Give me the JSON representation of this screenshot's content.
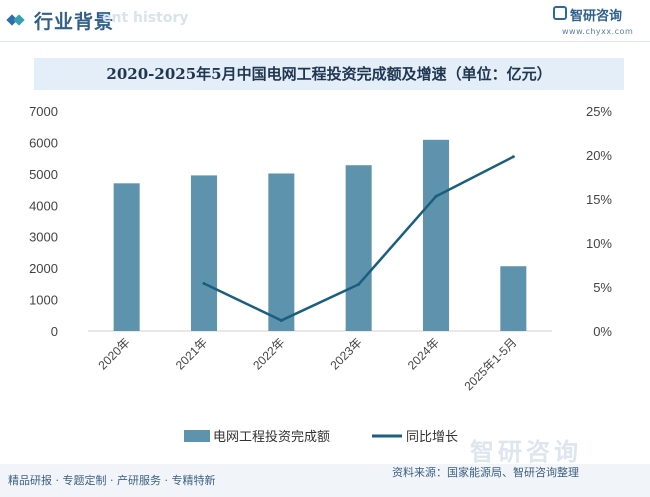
{
  "header": {
    "title": "行业背景",
    "ghost_text": "ent history",
    "logo_name": "智研咨询",
    "site": "www.chyxx.com"
  },
  "colors": {
    "bar": "#5e93ad",
    "line": "#1a5f7f",
    "accent_blue": "#2f6fa8",
    "accent_teal": "#35a0b4"
  },
  "chart_data": {
    "type": "bar",
    "title": "2020-2025年5月中国电网工程投资完成额及增速（单位：亿元）",
    "categories": [
      "2020年",
      "2021年",
      "2022年",
      "2023年",
      "2024年",
      "2025年1-5月"
    ],
    "series": [
      {
        "name": "电网工程投资完成额",
        "type": "bar",
        "axis": "left",
        "values": [
          4699,
          4951,
          5012,
          5275,
          6083,
          2061
        ]
      },
      {
        "name": "同比增长",
        "type": "line",
        "axis": "right",
        "unit": "%",
        "values": [
          null,
          5.4,
          1.2,
          5.3,
          15.3,
          19.8
        ]
      }
    ],
    "y_left": {
      "min": 0,
      "max": 7000,
      "ticks": [
        0,
        1000,
        2000,
        3000,
        4000,
        5000,
        6000,
        7000
      ]
    },
    "y_right": {
      "min": 0,
      "max": 25,
      "ticks": [
        "0%",
        "5%",
        "10%",
        "15%",
        "20%",
        "25%"
      ]
    },
    "legend_position": "bottom"
  },
  "footer": {
    "tags": "精品研报 · 专题定制 · 产研服务 · 专精特新",
    "source": "资料来源：国家能源局、智研咨询整理",
    "watermark": "智研咨询"
  }
}
